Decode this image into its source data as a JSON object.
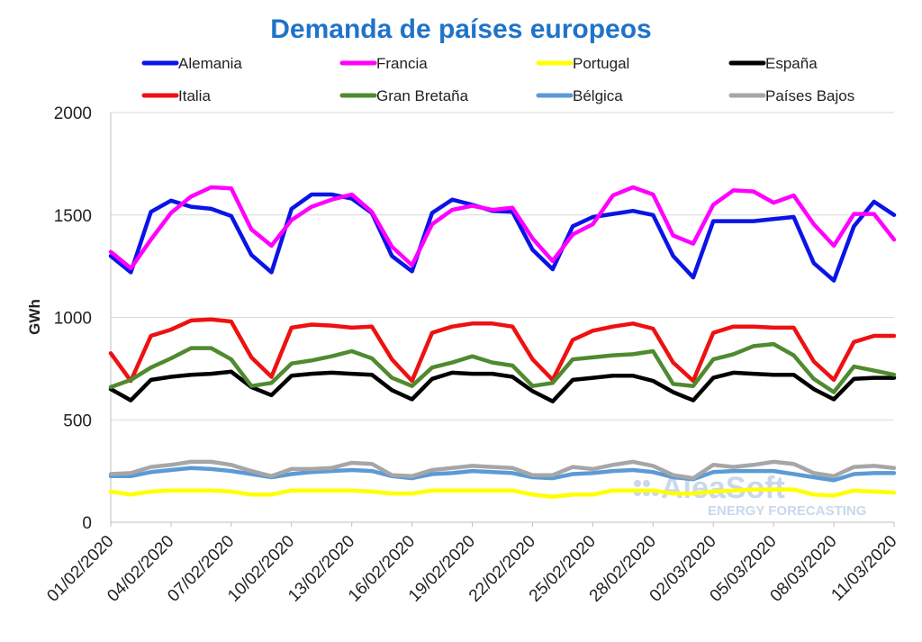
{
  "chart_data": {
    "type": "line",
    "title": "Demanda de países europeos",
    "ylabel": "GWh",
    "xlabel": "",
    "ylim": [
      0,
      2000
    ],
    "yticks": [
      0,
      500,
      1000,
      1500,
      2000
    ],
    "grid": "horizontal",
    "legend_position": "top",
    "x": [
      "01/02/2020",
      "02/02/2020",
      "03/02/2020",
      "04/02/2020",
      "05/02/2020",
      "06/02/2020",
      "07/02/2020",
      "08/02/2020",
      "09/02/2020",
      "10/02/2020",
      "11/02/2020",
      "12/02/2020",
      "13/02/2020",
      "14/02/2020",
      "15/02/2020",
      "16/02/2020",
      "17/02/2020",
      "18/02/2020",
      "19/02/2020",
      "20/02/2020",
      "21/02/2020",
      "22/02/2020",
      "23/02/2020",
      "24/02/2020",
      "25/02/2020",
      "26/02/2020",
      "27/02/2020",
      "28/02/2020",
      "29/02/2020",
      "01/03/2020",
      "02/03/2020",
      "03/03/2020",
      "04/03/2020",
      "05/03/2020",
      "06/03/2020",
      "07/03/2020",
      "08/03/2020",
      "09/03/2020",
      "10/03/2020",
      "11/03/2020"
    ],
    "xtick_labels": [
      "01/02/2020",
      "04/02/2020",
      "07/02/2020",
      "10/02/2020",
      "13/02/2020",
      "16/02/2020",
      "19/02/2020",
      "22/02/2020",
      "25/02/2020",
      "28/02/2020",
      "02/03/2020",
      "05/03/2020",
      "08/03/2020",
      "11/03/2020"
    ],
    "series": [
      {
        "name": "Alemania",
        "color": "#0a14e6",
        "values": [
          1300,
          1220,
          1515,
          1570,
          1540,
          1530,
          1495,
          1305,
          1220,
          1530,
          1600,
          1600,
          1580,
          1510,
          1300,
          1225,
          1510,
          1575,
          1550,
          1520,
          1515,
          1330,
          1235,
          1445,
          1490,
          1505,
          1520,
          1500,
          1300,
          1195,
          1470,
          1470,
          1470,
          1480,
          1490,
          1265,
          1180,
          1445,
          1565,
          1500
        ]
      },
      {
        "name": "Francia",
        "color": "#ff00ff",
        "values": [
          1320,
          1240,
          1380,
          1510,
          1590,
          1635,
          1630,
          1430,
          1350,
          1475,
          1540,
          1575,
          1600,
          1515,
          1345,
          1255,
          1455,
          1525,
          1545,
          1525,
          1535,
          1385,
          1275,
          1405,
          1455,
          1595,
          1635,
          1600,
          1400,
          1360,
          1550,
          1620,
          1615,
          1560,
          1595,
          1455,
          1350,
          1505,
          1505,
          1380
        ]
      },
      {
        "name": "Portugal",
        "color": "#ffff00",
        "values": [
          150,
          135,
          150,
          155,
          155,
          155,
          150,
          135,
          135,
          155,
          155,
          155,
          155,
          150,
          140,
          140,
          155,
          155,
          155,
          155,
          155,
          135,
          125,
          135,
          135,
          155,
          155,
          155,
          140,
          140,
          150,
          155,
          160,
          160,
          160,
          135,
          130,
          155,
          150,
          145
        ]
      },
      {
        "name": "España",
        "color": "#000000",
        "values": [
          650,
          595,
          695,
          710,
          720,
          725,
          735,
          660,
          620,
          715,
          725,
          730,
          725,
          720,
          645,
          600,
          700,
          730,
          725,
          725,
          710,
          640,
          590,
          695,
          705,
          715,
          715,
          690,
          635,
          595,
          705,
          730,
          725,
          720,
          720,
          650,
          600,
          700,
          705,
          705
        ]
      },
      {
        "name": "Italia",
        "color": "#ee1111",
        "values": [
          825,
          690,
          910,
          940,
          985,
          990,
          980,
          805,
          710,
          950,
          965,
          960,
          950,
          955,
          795,
          690,
          925,
          955,
          970,
          970,
          955,
          795,
          695,
          890,
          935,
          955,
          970,
          945,
          780,
          690,
          925,
          955,
          955,
          950,
          950,
          785,
          695,
          880,
          910,
          910
        ]
      },
      {
        "name": "Gran Bretaña",
        "color": "#4f8a2f",
        "values": [
          660,
          695,
          755,
          800,
          850,
          850,
          795,
          665,
          680,
          775,
          790,
          810,
          835,
          800,
          705,
          665,
          755,
          780,
          810,
          780,
          765,
          665,
          680,
          795,
          805,
          815,
          820,
          835,
          675,
          665,
          795,
          820,
          860,
          870,
          815,
          700,
          635,
          760,
          740,
          720
        ]
      },
      {
        "name": "Bélgica",
        "color": "#5b9bd5",
        "values": [
          225,
          225,
          245,
          255,
          265,
          260,
          250,
          235,
          220,
          235,
          245,
          250,
          255,
          250,
          225,
          215,
          235,
          240,
          250,
          245,
          240,
          220,
          215,
          235,
          240,
          250,
          255,
          245,
          220,
          210,
          245,
          250,
          250,
          250,
          235,
          220,
          205,
          235,
          240,
          240
        ]
      },
      {
        "name": "Países Bajos",
        "color": "#a6a6a6",
        "values": [
          235,
          240,
          270,
          280,
          295,
          295,
          280,
          250,
          225,
          260,
          260,
          265,
          290,
          285,
          230,
          225,
          255,
          265,
          275,
          270,
          265,
          230,
          230,
          270,
          260,
          280,
          295,
          275,
          230,
          215,
          280,
          270,
          280,
          295,
          285,
          240,
          225,
          270,
          275,
          265
        ]
      }
    ]
  },
  "watermark": {
    "brand": "AleaSoft",
    "tagline": "ENERGY FORECASTING"
  }
}
